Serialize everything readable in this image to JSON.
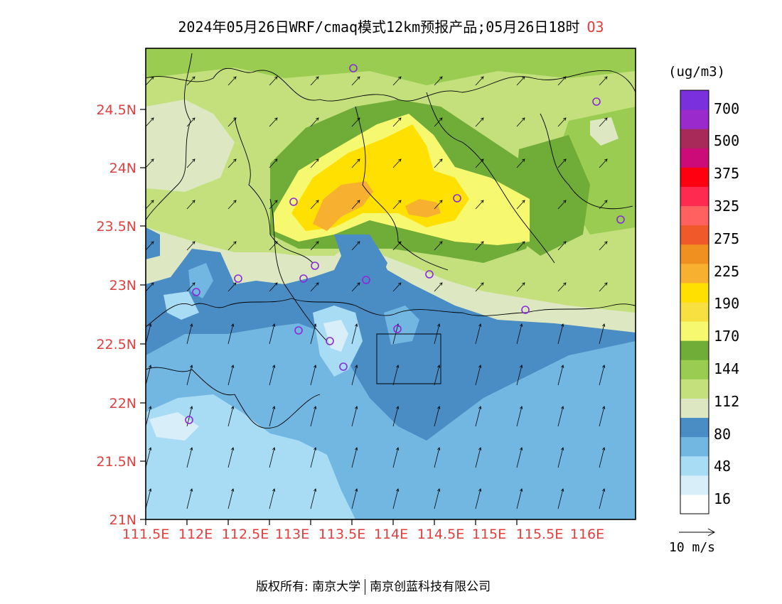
{
  "title": {
    "text": "2024年05月26日WRF/cmaq模式12km预报产品;05月26日18时",
    "species": "O3"
  },
  "colorbar": {
    "unit": "(ug/m3)",
    "labels": [
      "16",
      "48",
      "80",
      "112",
      "144",
      "170",
      "190",
      "225",
      "275",
      "325",
      "375",
      "500",
      "700"
    ],
    "colors": [
      "#ffffff",
      "#d8eef8",
      "#a8dcf4",
      "#72b6e2",
      "#4a8cc4",
      "#dde8c2",
      "#c3e07c",
      "#99cc50",
      "#70ac38",
      "#f6f870",
      "#f8e040",
      "#ffe000",
      "#f8b030",
      "#f09020",
      "#f05a2a",
      "#ff6060",
      "#ff2a50",
      "#ff0010",
      "#cc0a78",
      "#a82a58",
      "#9a2acc",
      "#7a30dc"
    ]
  },
  "axes": {
    "lat_labels": [
      "24.5N",
      "24N",
      "23.5N",
      "23N",
      "22.5N",
      "22N",
      "21.5N",
      "21N"
    ],
    "lon_labels": [
      "111.5E",
      "112E",
      "112.5E",
      "113E",
      "113.5E",
      "114E",
      "114.5E",
      "115E",
      "115.5E",
      "116E"
    ]
  },
  "vector_legend": {
    "label": "10 m/s"
  },
  "footer": {
    "left": "版权所有: 南京大学",
    "right": "南京创蓝科技有限公司"
  },
  "map_colors": {
    "sea_dark": "#4a8cc4",
    "sea_mid": "#72b6e2",
    "sea_light": "#a8dcf4",
    "sea_pale": "#d8eef8",
    "land_pale": "#dde8c2",
    "land_light": "#c3e07c",
    "land_mid": "#99cc50",
    "land_dark": "#70ac38",
    "high_yellow": "#f6f870",
    "high_gold": "#ffe000",
    "high_orange": "#f8b030",
    "station_ring": "#8a2ad8"
  }
}
